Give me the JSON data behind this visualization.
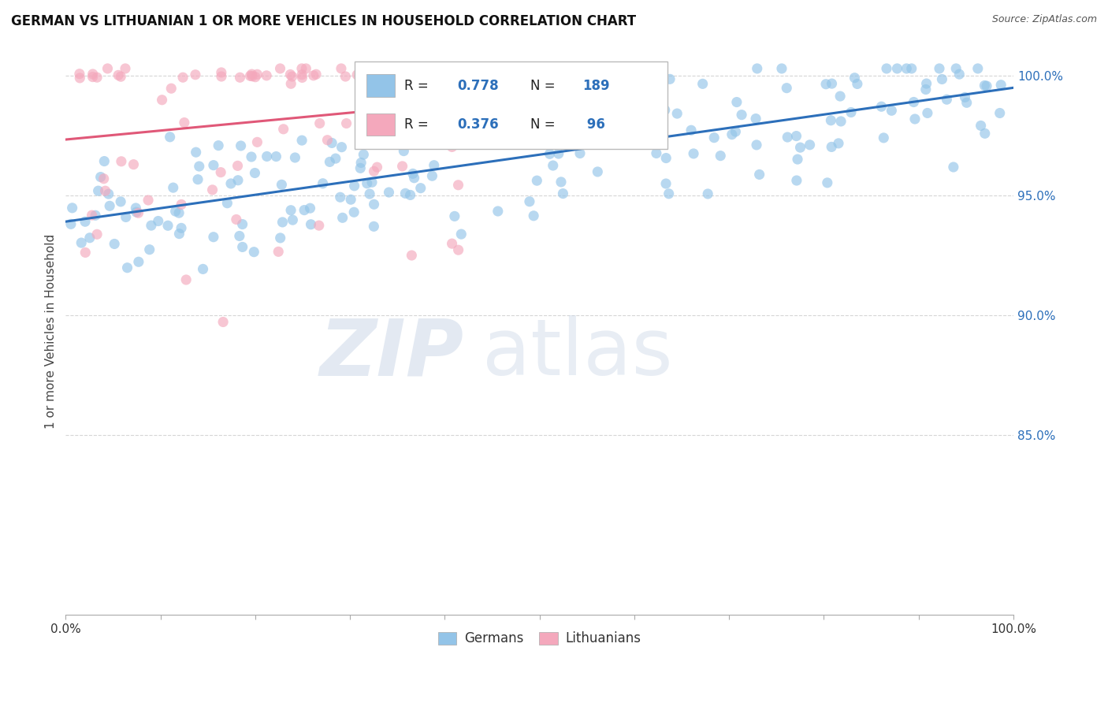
{
  "title": "GERMAN VS LITHUANIAN 1 OR MORE VEHICLES IN HOUSEHOLD CORRELATION CHART",
  "source": "Source: ZipAtlas.com",
  "ylabel": "1 or more Vehicles in Household",
  "ytick_labels": [
    "85.0%",
    "90.0%",
    "95.0%",
    "100.0%"
  ],
  "ytick_values": [
    0.85,
    0.9,
    0.95,
    1.0
  ],
  "xlim": [
    0.0,
    1.0
  ],
  "ylim": [
    0.775,
    1.012
  ],
  "german_color": "#93c4e8",
  "lithuanian_color": "#f4a8bc",
  "german_line_color": "#2c6fba",
  "lithuanian_line_color": "#e05878",
  "legend_R_german": "0.778",
  "legend_N_german": "189",
  "legend_R_lithuanian": "0.376",
  "legend_N_lithuanian": "96",
  "watermark_zip": "ZIP",
  "watermark_atlas": "atlas",
  "num_xticks": 10
}
